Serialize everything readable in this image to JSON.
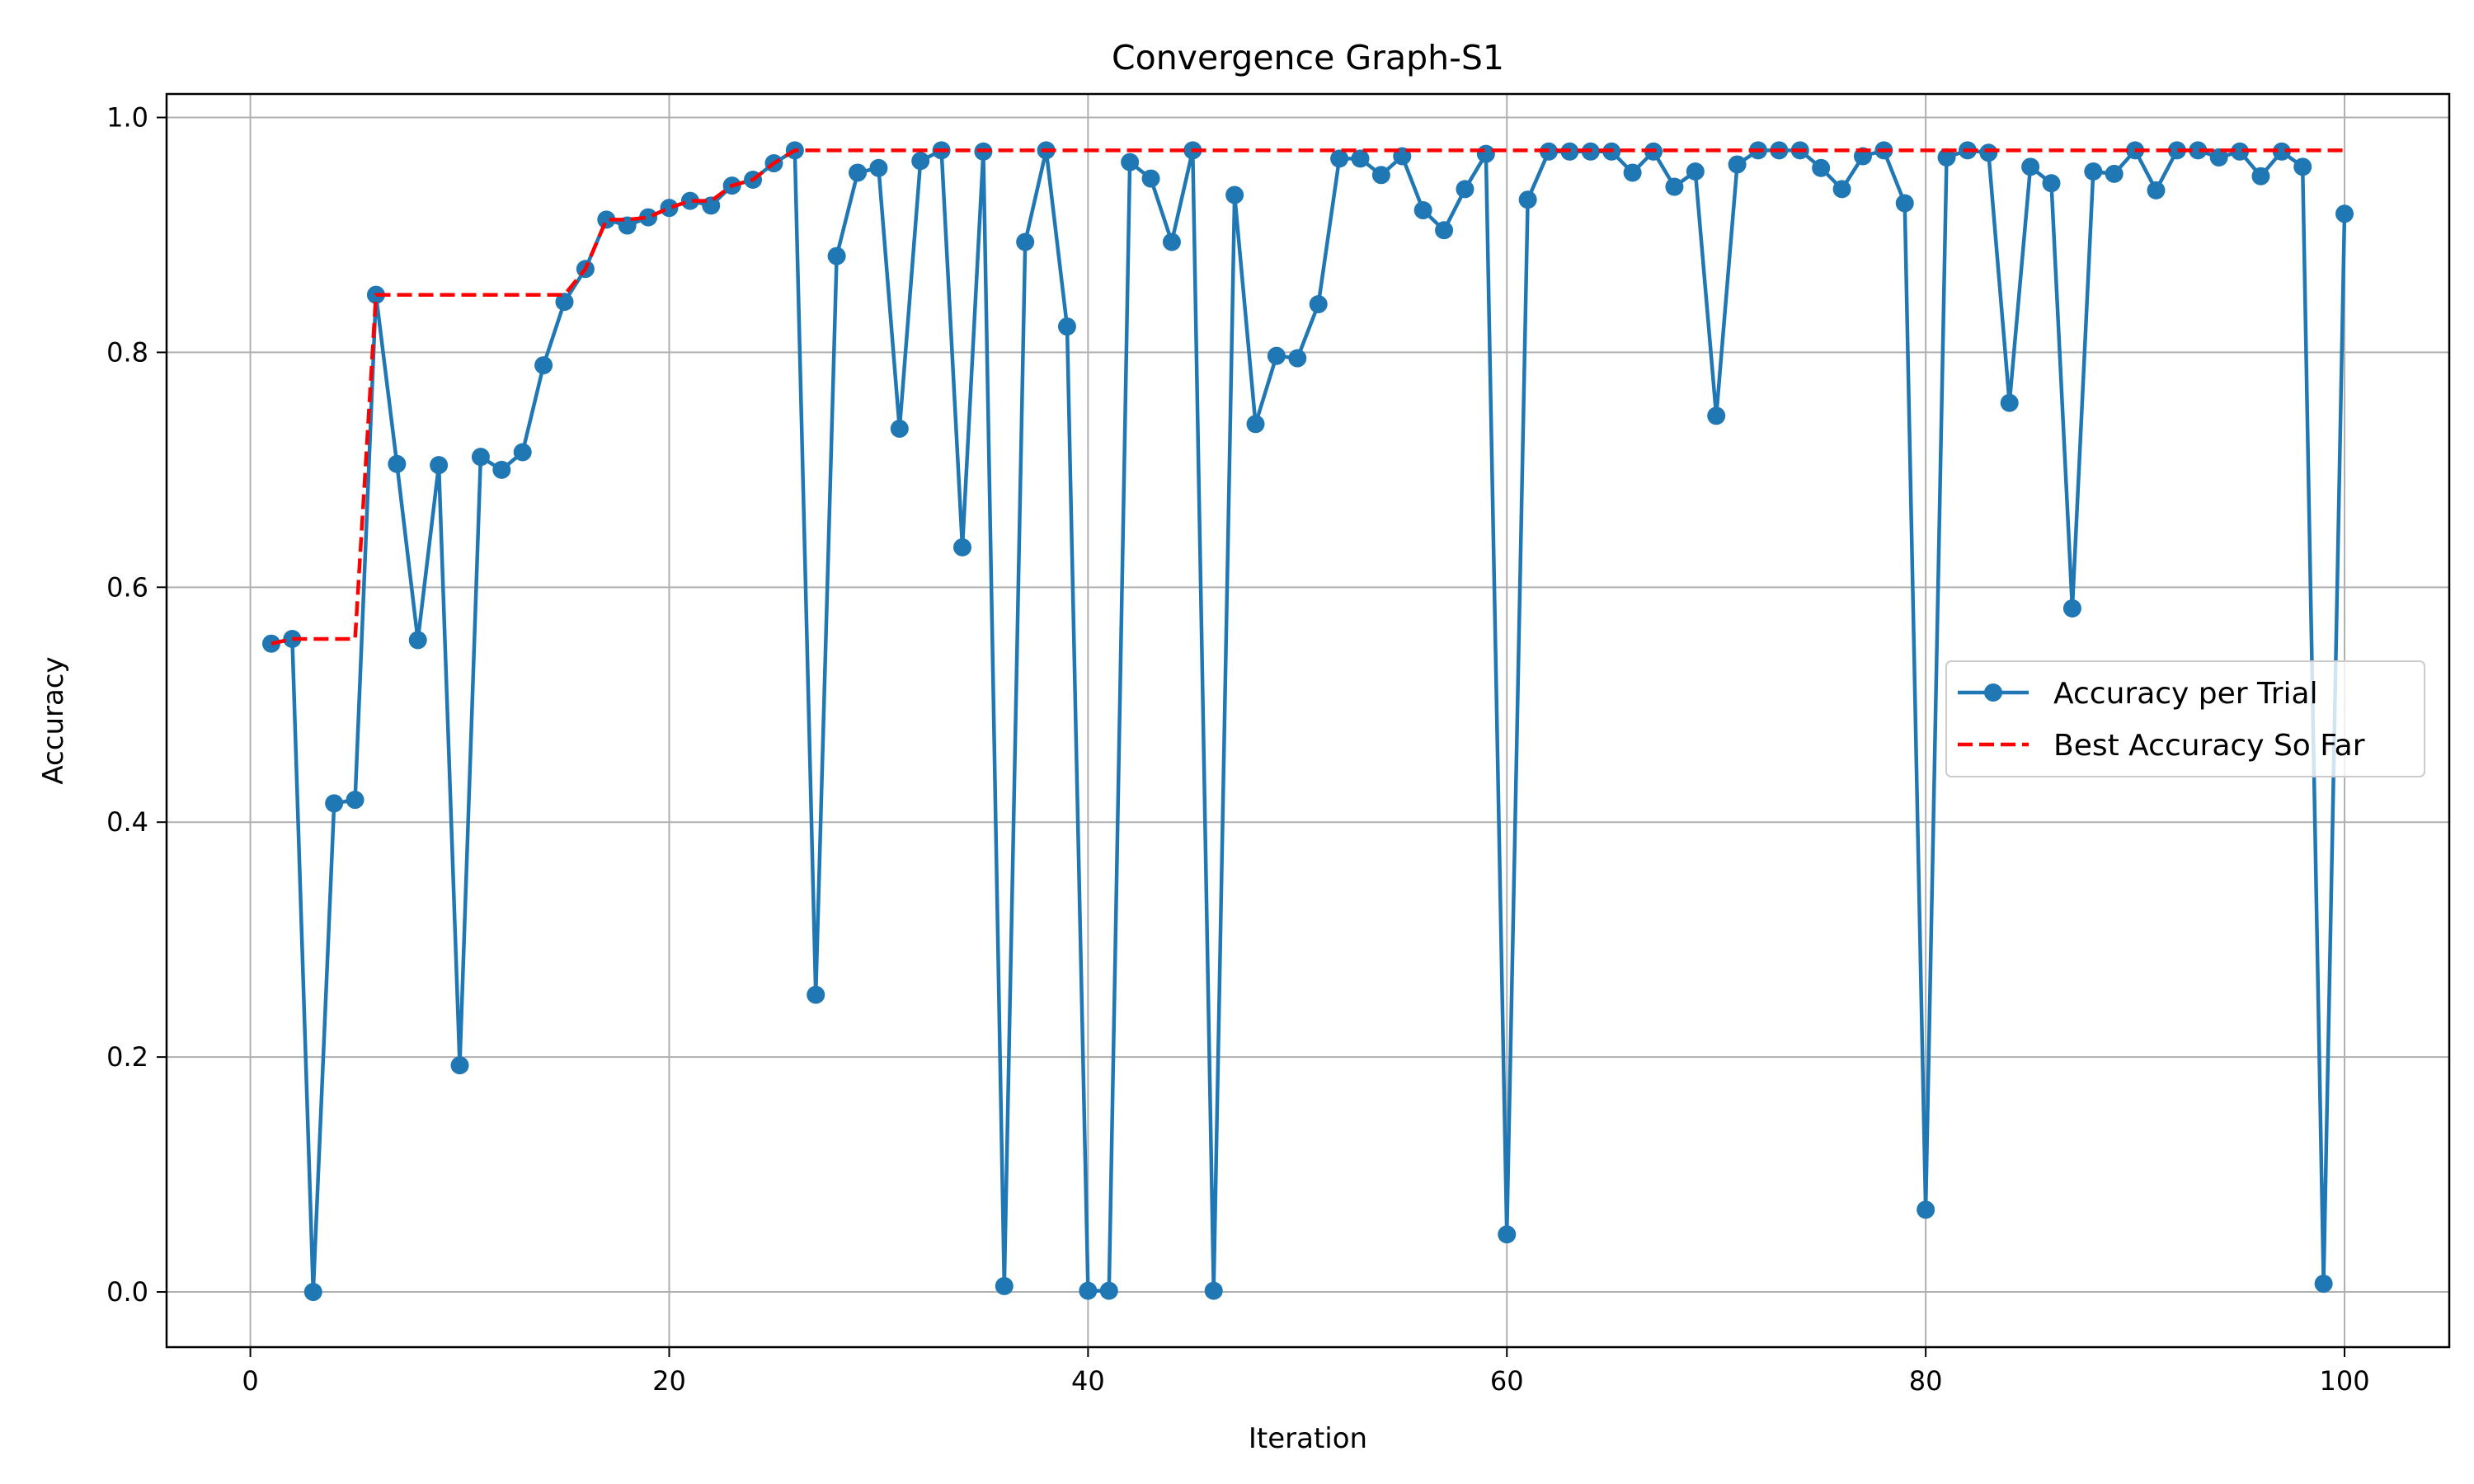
{
  "chart_data": {
    "type": "line",
    "title": "Convergence Graph-S1",
    "xlabel": "Iteration",
    "ylabel": "Accuracy",
    "xlim": [
      -4,
      105
    ],
    "ylim": [
      -0.047,
      1.02
    ],
    "xticks": [
      0,
      20,
      40,
      60,
      80,
      100
    ],
    "yticks": [
      0.0,
      0.2,
      0.4,
      0.6,
      0.8,
      1.0
    ],
    "xtick_labels": [
      "0",
      "20",
      "40",
      "60",
      "80",
      "100"
    ],
    "ytick_labels": [
      "0.0",
      "0.2",
      "0.4",
      "0.6",
      "0.8",
      "1.0"
    ],
    "grid": true,
    "legend_position": "center-right",
    "series": [
      {
        "name": "Accuracy per Trial",
        "style": "solid-marker",
        "color": "#1f77b4",
        "x": [
          1,
          2,
          3,
          4,
          5,
          6,
          7,
          8,
          9,
          10,
          11,
          12,
          13,
          14,
          15,
          16,
          17,
          18,
          19,
          20,
          21,
          22,
          23,
          24,
          25,
          26,
          27,
          28,
          29,
          30,
          31,
          32,
          33,
          34,
          35,
          36,
          37,
          38,
          39,
          40,
          41,
          42,
          43,
          44,
          45,
          46,
          47,
          48,
          49,
          50,
          51,
          52,
          53,
          54,
          55,
          56,
          57,
          58,
          59,
          60,
          61,
          62,
          63,
          64,
          65,
          66,
          67,
          68,
          69,
          70,
          71,
          72,
          73,
          74,
          75,
          76,
          77,
          78,
          79,
          80,
          81,
          82,
          83,
          84,
          85,
          86,
          87,
          88,
          89,
          90,
          91,
          92,
          93,
          94,
          95,
          96,
          97,
          98,
          99,
          100
        ],
        "values": [
          0.552,
          0.556,
          0.0,
          0.416,
          0.419,
          0.849,
          0.705,
          0.555,
          0.704,
          0.193,
          0.711,
          0.7,
          0.715,
          0.789,
          0.843,
          0.871,
          0.913,
          0.908,
          0.915,
          0.923,
          0.929,
          0.925,
          0.942,
          0.947,
          0.961,
          0.972,
          0.253,
          0.882,
          0.953,
          0.957,
          0.735,
          0.963,
          0.972,
          0.634,
          0.971,
          0.005,
          0.894,
          0.972,
          0.822,
          0.001,
          0.001,
          0.962,
          0.948,
          0.894,
          0.972,
          0.001,
          0.934,
          0.739,
          0.797,
          0.795,
          0.841,
          0.965,
          0.965,
          0.951,
          0.967,
          0.921,
          0.904,
          0.939,
          0.969,
          0.049,
          0.93,
          0.971,
          0.971,
          0.971,
          0.971,
          0.953,
          0.971,
          0.941,
          0.954,
          0.746,
          0.96,
          0.972,
          0.972,
          0.972,
          0.957,
          0.939,
          0.967,
          0.972,
          0.927,
          0.07,
          0.966,
          0.972,
          0.97,
          0.757,
          0.958,
          0.944,
          0.582,
          0.954,
          0.952,
          0.972,
          0.938,
          0.972,
          0.972,
          0.966,
          0.971,
          0.95,
          0.971,
          0.958,
          0.007,
          0.918
        ]
      },
      {
        "name": "Best Accuracy So Far",
        "style": "dashed",
        "color": "#ff0000",
        "x": [
          1,
          2,
          3,
          4,
          5,
          6,
          7,
          8,
          9,
          10,
          11,
          12,
          13,
          14,
          15,
          16,
          17,
          18,
          19,
          20,
          21,
          22,
          23,
          24,
          25,
          26,
          27,
          28,
          29,
          30,
          31,
          32,
          33,
          34,
          35,
          36,
          37,
          38,
          39,
          40,
          41,
          42,
          43,
          44,
          45,
          46,
          47,
          48,
          49,
          50,
          51,
          52,
          53,
          54,
          55,
          56,
          57,
          58,
          59,
          60,
          61,
          62,
          63,
          64,
          65,
          66,
          67,
          68,
          69,
          70,
          71,
          72,
          73,
          74,
          75,
          76,
          77,
          78,
          79,
          80,
          81,
          82,
          83,
          84,
          85,
          86,
          87,
          88,
          89,
          90,
          91,
          92,
          93,
          94,
          95,
          96,
          97,
          98,
          99,
          100
        ],
        "values": [
          0.552,
          0.556,
          0.556,
          0.556,
          0.556,
          0.849,
          0.849,
          0.849,
          0.849,
          0.849,
          0.849,
          0.849,
          0.849,
          0.849,
          0.849,
          0.871,
          0.913,
          0.913,
          0.915,
          0.923,
          0.929,
          0.929,
          0.942,
          0.947,
          0.961,
          0.972,
          0.972,
          0.972,
          0.972,
          0.972,
          0.972,
          0.972,
          0.972,
          0.972,
          0.972,
          0.972,
          0.972,
          0.972,
          0.972,
          0.972,
          0.972,
          0.972,
          0.972,
          0.972,
          0.972,
          0.972,
          0.972,
          0.972,
          0.972,
          0.972,
          0.972,
          0.972,
          0.972,
          0.972,
          0.972,
          0.972,
          0.972,
          0.972,
          0.972,
          0.972,
          0.972,
          0.972,
          0.972,
          0.972,
          0.972,
          0.972,
          0.972,
          0.972,
          0.972,
          0.972,
          0.972,
          0.972,
          0.972,
          0.972,
          0.972,
          0.972,
          0.972,
          0.972,
          0.972,
          0.972,
          0.972,
          0.972,
          0.972,
          0.972,
          0.972,
          0.972,
          0.972,
          0.972,
          0.972,
          0.972,
          0.972,
          0.972,
          0.972,
          0.972,
          0.972,
          0.972,
          0.972,
          0.972,
          0.972,
          0.972
        ]
      }
    ]
  }
}
